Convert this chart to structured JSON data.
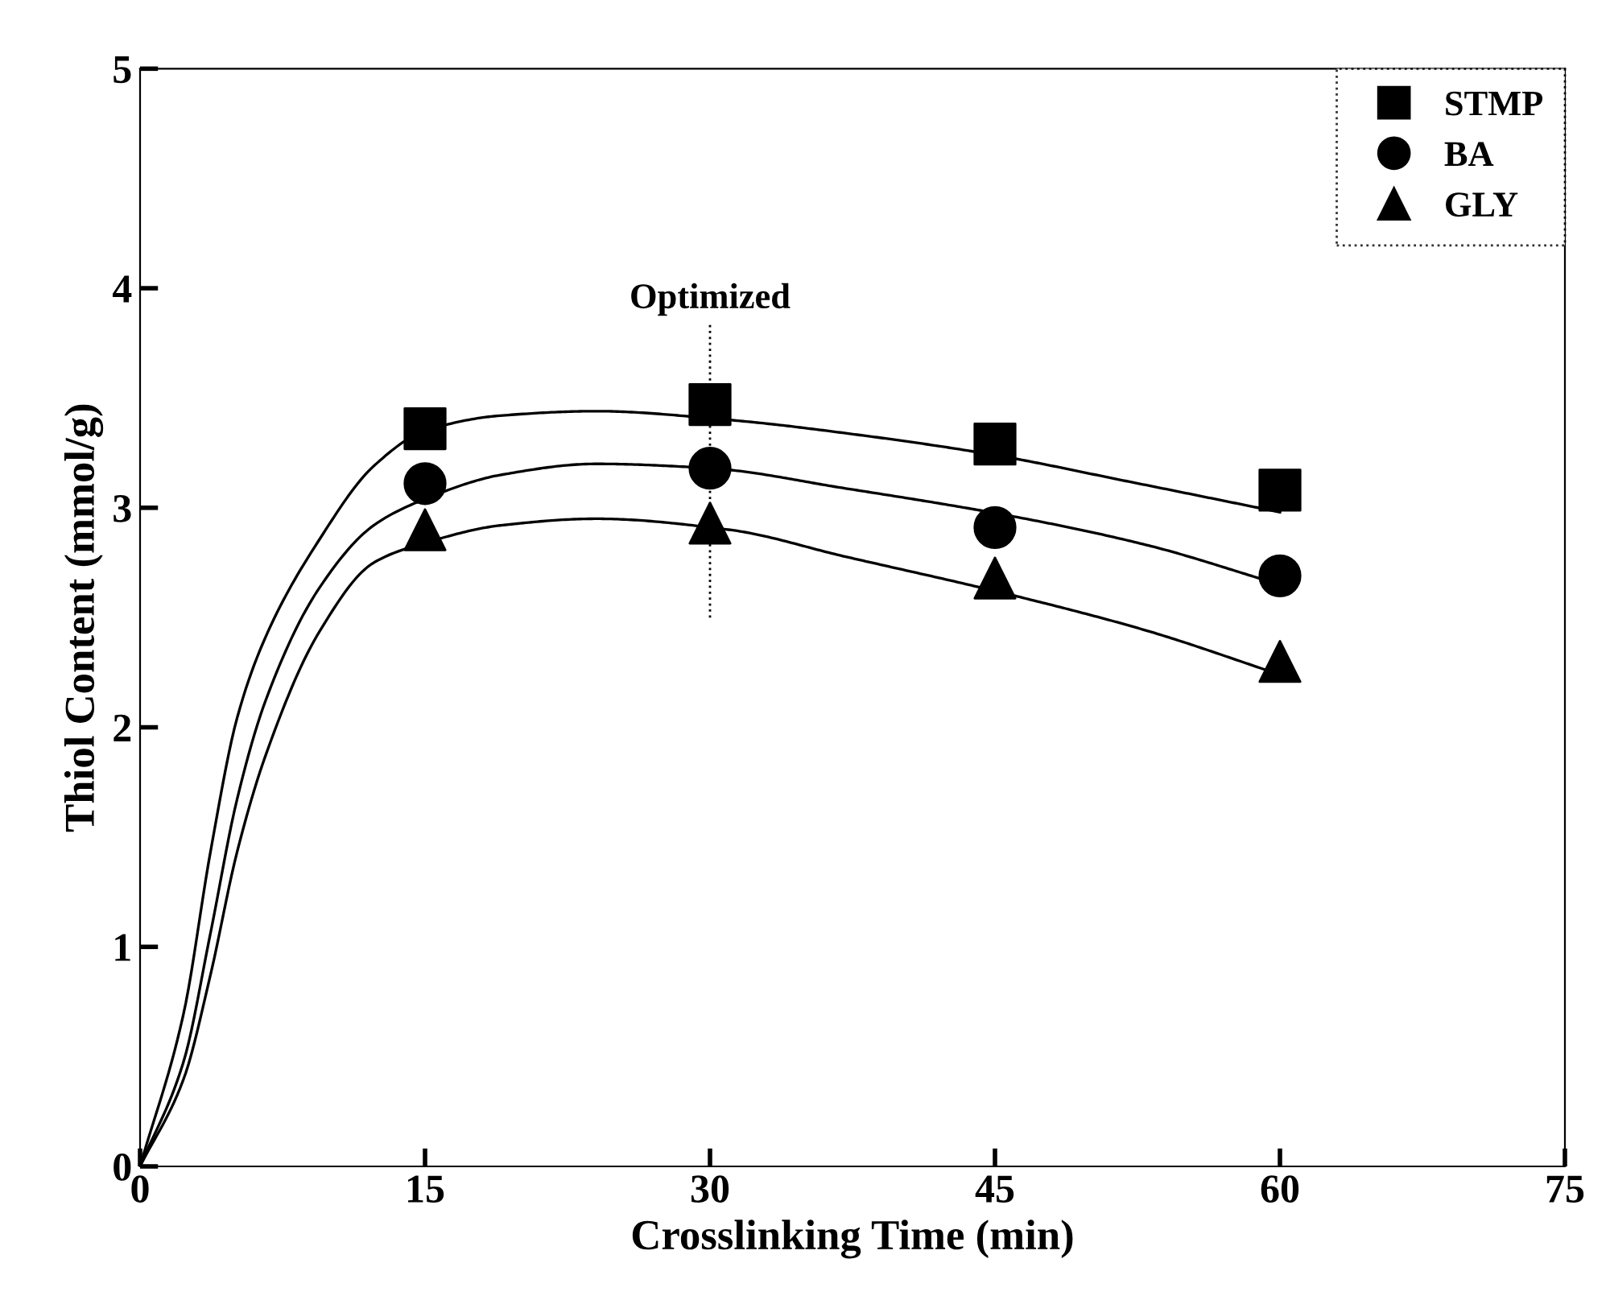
{
  "chart_data": {
    "type": "scatter",
    "xlabel": "Crosslinking Time (min)",
    "ylabel": "Thiol Content (mmol/g)",
    "xlim": [
      0,
      75
    ],
    "xticks": [
      0,
      15,
      30,
      45,
      60,
      75
    ],
    "ylim": [
      0,
      5
    ],
    "yticks": [
      0,
      1,
      2,
      3,
      4,
      5
    ],
    "grid": false,
    "legend": "top right",
    "ref_lines": [
      {
        "axis": "x",
        "value": 30,
        "label": "Optimized",
        "line_style": "dotted",
        "color": "#000000"
      }
    ],
    "series": [
      {
        "name": "STMP",
        "marker": "square",
        "color": "#000000",
        "x": [
          15,
          30,
          45,
          60
        ],
        "values": [
          3.36,
          3.47,
          3.29,
          3.08
        ]
      },
      {
        "name": "BA",
        "marker": "circle",
        "color": "#000000",
        "x": [
          15,
          30,
          45,
          60
        ],
        "values": [
          3.11,
          3.18,
          2.91,
          2.69
        ]
      },
      {
        "name": "GLY",
        "marker": "triangle",
        "color": "#000000",
        "x": [
          15,
          30,
          45,
          60
        ],
        "values": [
          2.9,
          2.93,
          2.68,
          2.3
        ]
      },
      {
        "type": "line",
        "color": "#000000",
        "x": [
          0,
          2.3,
          3.7,
          5.1,
          6.6,
          9.4,
          12.3,
          15,
          19,
          24,
          31,
          38,
          45,
          52,
          60
        ],
        "values": [
          0,
          0.7,
          1.43,
          2.04,
          2.41,
          2.85,
          3.19,
          3.35,
          3.42,
          3.44,
          3.4,
          3.33,
          3.24,
          3.12,
          2.98
        ]
      },
      {
        "type": "line",
        "color": "#000000",
        "x": [
          0,
          2.3,
          3.7,
          5.1,
          6.6,
          9.4,
          12.3,
          15,
          19,
          24,
          30,
          37,
          46,
          53,
          60
        ],
        "values": [
          0,
          0.48,
          1.06,
          1.67,
          2.12,
          2.63,
          2.92,
          3.04,
          3.15,
          3.2,
          3.18,
          3.09,
          2.96,
          2.83,
          2.65
        ]
      },
      {
        "type": "line",
        "color": "#000000",
        "x": [
          0,
          2.3,
          3.7,
          5.1,
          6.6,
          9.4,
          12.3,
          15,
          19,
          24,
          31,
          37,
          46,
          53,
          60
        ],
        "values": [
          0,
          0.4,
          0.87,
          1.43,
          1.87,
          2.43,
          2.75,
          2.84,
          2.92,
          2.95,
          2.9,
          2.78,
          2.6,
          2.44,
          2.24
        ]
      }
    ]
  }
}
